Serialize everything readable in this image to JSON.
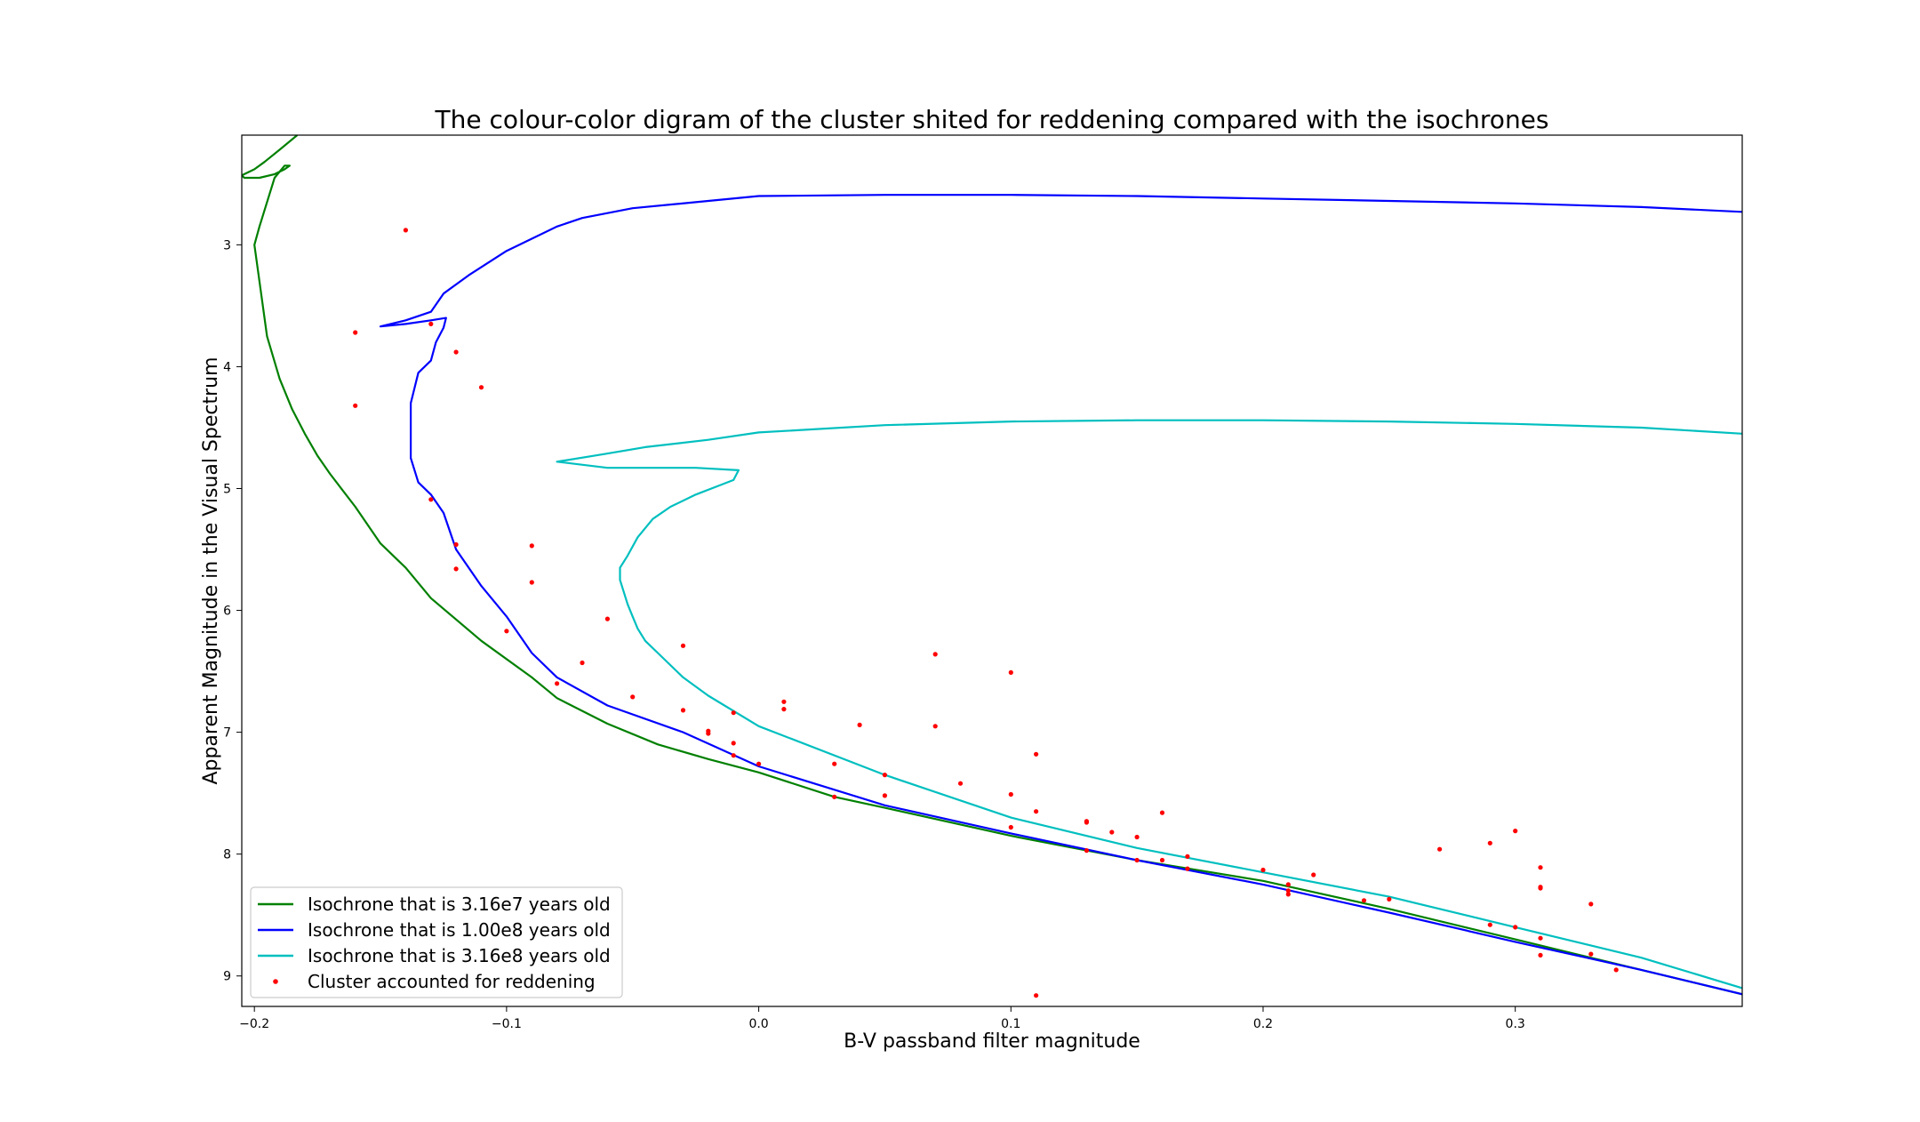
{
  "chart_data": {
    "type": "scatter",
    "title": "The colour-color digram of the cluster shited for reddening compared with the isochrones",
    "xlabel": "B-V passband filter magnitude",
    "ylabel": "Apparent Magnitude in the Visual Spectrum",
    "xlim": [
      -0.205,
      0.39
    ],
    "ylim": [
      9.25,
      2.1
    ],
    "y_inverted": true,
    "grid": false,
    "legend_position": "lower-left",
    "x_ticks": [
      -0.2,
      -0.1,
      0.0,
      0.1,
      0.2,
      0.3
    ],
    "x_tick_labels": [
      "−0.2",
      "−0.1",
      "0.0",
      "0.1",
      "0.2",
      "0.3"
    ],
    "y_ticks": [
      3,
      4,
      5,
      6,
      7,
      8,
      9
    ],
    "y_tick_labels": [
      "3",
      "4",
      "5",
      "6",
      "7",
      "8",
      "9"
    ],
    "series": [
      {
        "name": "Isochrone that is 3.16e7 years old",
        "kind": "line",
        "color": "#008000",
        "x": [
          0.39,
          0.35,
          0.3,
          0.25,
          0.2,
          0.15,
          0.1,
          0.05,
          0.03,
          0.0,
          -0.02,
          -0.04,
          -0.06,
          -0.08,
          -0.09,
          -0.11,
          -0.13,
          -0.14,
          -0.15,
          -0.16,
          -0.17,
          -0.175,
          -0.18,
          -0.185,
          -0.19,
          -0.195,
          -0.198,
          -0.2,
          -0.198,
          -0.195,
          -0.192,
          -0.188,
          -0.186,
          -0.188,
          -0.192,
          -0.198,
          -0.204,
          -0.205,
          -0.2,
          -0.196,
          -0.19,
          -0.183
        ],
        "y": [
          9.15,
          8.95,
          8.7,
          8.45,
          8.22,
          8.05,
          7.85,
          7.62,
          7.53,
          7.33,
          7.22,
          7.1,
          6.93,
          6.72,
          6.55,
          6.25,
          5.9,
          5.65,
          5.45,
          5.15,
          4.88,
          4.73,
          4.55,
          4.35,
          4.1,
          3.75,
          3.3,
          3.0,
          2.85,
          2.65,
          2.45,
          2.35,
          2.35,
          2.38,
          2.42,
          2.45,
          2.45,
          2.43,
          2.38,
          2.32,
          2.22,
          2.1
        ]
      },
      {
        "name": "Isochrone that is 1.00e8 years old",
        "kind": "line",
        "color": "#0000ff",
        "x": [
          0.39,
          0.35,
          0.3,
          0.25,
          0.2,
          0.15,
          0.1,
          0.05,
          0.0,
          -0.03,
          -0.06,
          -0.08,
          -0.09,
          -0.1,
          -0.11,
          -0.12,
          -0.125,
          -0.13,
          -0.135,
          -0.138,
          -0.138,
          -0.135,
          -0.13,
          -0.128,
          -0.125,
          -0.124,
          -0.13,
          -0.14,
          -0.15,
          -0.14,
          -0.13,
          -0.125,
          -0.115,
          -0.1,
          -0.09,
          -0.08,
          -0.07,
          -0.05,
          -0.02,
          0.0,
          0.05,
          0.1,
          0.15,
          0.2,
          0.25,
          0.3,
          0.35,
          0.39
        ],
        "y": [
          9.15,
          8.95,
          8.72,
          8.48,
          8.25,
          8.05,
          7.83,
          7.6,
          7.28,
          7.0,
          6.78,
          6.55,
          6.35,
          6.05,
          5.8,
          5.5,
          5.2,
          5.05,
          4.95,
          4.75,
          4.3,
          4.05,
          3.95,
          3.8,
          3.68,
          3.6,
          3.62,
          3.65,
          3.67,
          3.62,
          3.55,
          3.4,
          3.25,
          3.05,
          2.95,
          2.85,
          2.78,
          2.7,
          2.64,
          2.6,
          2.59,
          2.59,
          2.6,
          2.62,
          2.64,
          2.66,
          2.69,
          2.73
        ]
      },
      {
        "name": "Isochrone that is 3.16e8 years old",
        "kind": "line",
        "color": "#00bfbf",
        "x": [
          0.39,
          0.35,
          0.3,
          0.25,
          0.2,
          0.15,
          0.1,
          0.05,
          0.0,
          -0.02,
          -0.03,
          -0.04,
          -0.045,
          -0.048,
          -0.05,
          -0.052,
          -0.055,
          -0.055,
          -0.052,
          -0.048,
          -0.042,
          -0.035,
          -0.025,
          -0.015,
          -0.01,
          -0.008,
          -0.025,
          -0.06,
          -0.08,
          -0.062,
          -0.045,
          -0.02,
          0.0,
          0.05,
          0.1,
          0.15,
          0.2,
          0.25,
          0.3,
          0.35,
          0.39
        ],
        "y": [
          9.1,
          8.85,
          8.6,
          8.35,
          8.15,
          7.95,
          7.7,
          7.35,
          6.95,
          6.7,
          6.55,
          6.35,
          6.25,
          6.15,
          6.05,
          5.95,
          5.75,
          5.65,
          5.55,
          5.4,
          5.25,
          5.15,
          5.05,
          4.97,
          4.93,
          4.85,
          4.83,
          4.83,
          4.78,
          4.72,
          4.66,
          4.6,
          4.54,
          4.48,
          4.45,
          4.44,
          4.44,
          4.45,
          4.47,
          4.5,
          4.55
        ]
      },
      {
        "name": "Cluster accounted for reddening",
        "kind": "scatter",
        "color": "#ff0000",
        "points": [
          [
            -0.14,
            2.88
          ],
          [
            -0.16,
            3.72
          ],
          [
            -0.13,
            3.65
          ],
          [
            -0.12,
            3.88
          ],
          [
            -0.11,
            4.17
          ],
          [
            -0.16,
            4.32
          ],
          [
            -0.13,
            5.09
          ],
          [
            -0.12,
            5.46
          ],
          [
            -0.09,
            5.47
          ],
          [
            -0.12,
            5.66
          ],
          [
            -0.09,
            5.77
          ],
          [
            -0.06,
            6.07
          ],
          [
            -0.1,
            6.17
          ],
          [
            -0.03,
            6.29
          ],
          [
            -0.07,
            6.43
          ],
          [
            -0.08,
            6.6
          ],
          [
            -0.05,
            6.71
          ],
          [
            -0.03,
            6.82
          ],
          [
            -0.01,
            6.84
          ],
          [
            -0.02,
            6.99
          ],
          [
            -0.02,
            7.01
          ],
          [
            -0.01,
            7.09
          ],
          [
            -0.01,
            7.19
          ],
          [
            0.0,
            7.26
          ],
          [
            0.01,
            6.75
          ],
          [
            0.01,
            6.81
          ],
          [
            0.04,
            6.94
          ],
          [
            0.07,
            6.95
          ],
          [
            0.07,
            6.36
          ],
          [
            0.1,
            6.51
          ],
          [
            0.03,
            7.26
          ],
          [
            0.05,
            7.35
          ],
          [
            0.05,
            7.52
          ],
          [
            0.03,
            7.53
          ],
          [
            0.08,
            7.42
          ],
          [
            0.1,
            7.51
          ],
          [
            0.11,
            7.18
          ],
          [
            0.11,
            7.65
          ],
          [
            0.1,
            7.78
          ],
          [
            0.13,
            7.73
          ],
          [
            0.13,
            7.74
          ],
          [
            0.14,
            7.82
          ],
          [
            0.16,
            7.66
          ],
          [
            0.15,
            7.86
          ],
          [
            0.13,
            7.97
          ],
          [
            0.15,
            8.05
          ],
          [
            0.16,
            8.05
          ],
          [
            0.17,
            8.02
          ],
          [
            0.17,
            8.12
          ],
          [
            0.2,
            8.13
          ],
          [
            0.21,
            8.25
          ],
          [
            0.21,
            8.3
          ],
          [
            0.21,
            8.33
          ],
          [
            0.22,
            8.17
          ],
          [
            0.24,
            8.38
          ],
          [
            0.25,
            8.37
          ],
          [
            0.27,
            7.96
          ],
          [
            0.29,
            7.91
          ],
          [
            0.3,
            7.81
          ],
          [
            0.31,
            8.11
          ],
          [
            0.31,
            8.27
          ],
          [
            0.31,
            8.28
          ],
          [
            0.33,
            8.41
          ],
          [
            0.29,
            8.58
          ],
          [
            0.3,
            8.6
          ],
          [
            0.31,
            8.69
          ],
          [
            0.31,
            8.83
          ],
          [
            0.33,
            8.82
          ],
          [
            0.34,
            8.95
          ],
          [
            0.11,
            9.16
          ]
        ]
      }
    ]
  }
}
